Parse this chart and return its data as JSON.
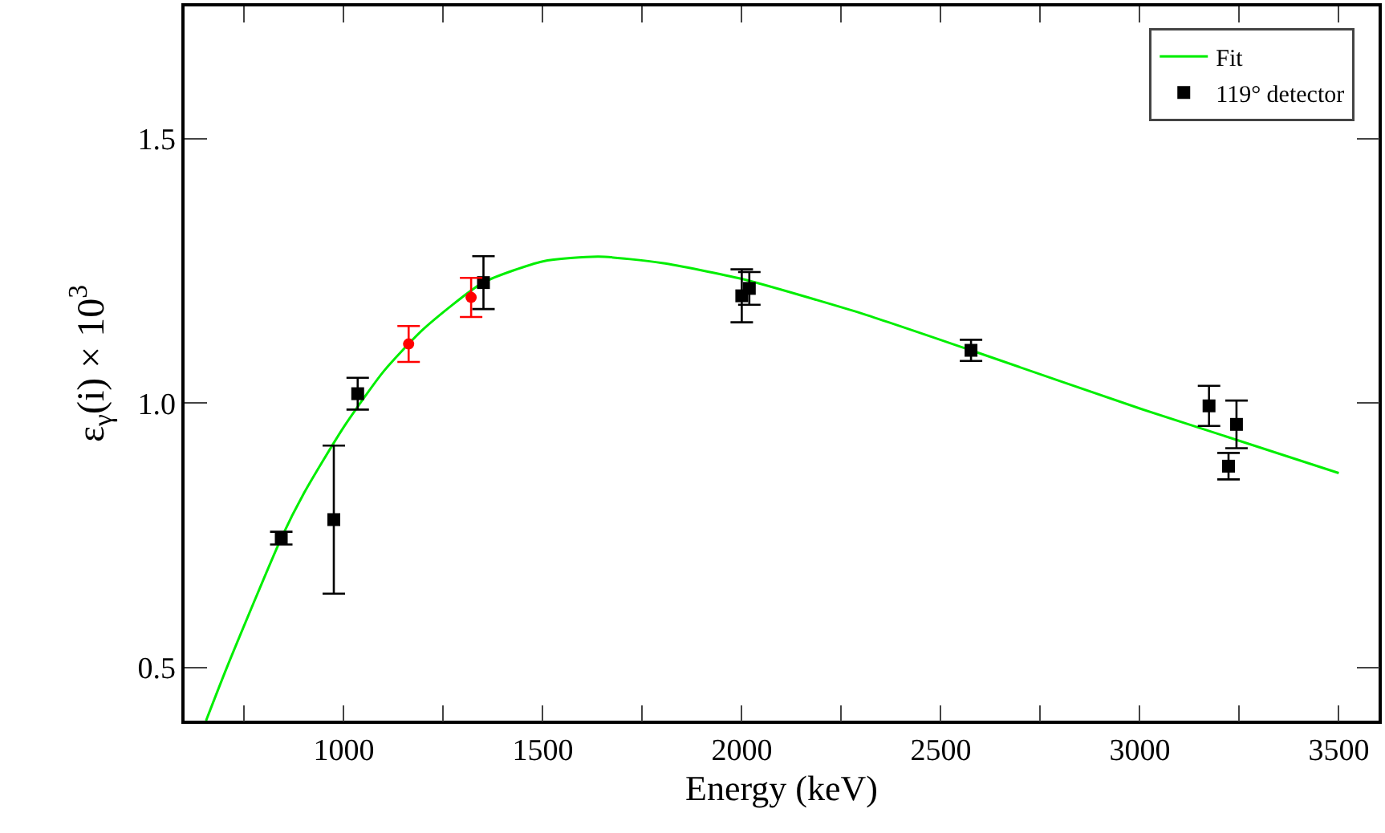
{
  "chart_data": {
    "type": "scatter",
    "xlabel": "Energy (keV)",
    "ylabel": "ε$_{γ}$(i) × 10$^{3}$",
    "xlim": [
      600,
      3600
    ],
    "ylim": [
      0.4,
      1.75
    ],
    "xticks": [
      {
        "value": 750,
        "label": null
      },
      1000,
      {
        "value": 1250,
        "label": null
      },
      1500,
      {
        "value": 1750,
        "label": null
      },
      2000,
      {
        "value": 2250,
        "label": null
      },
      2500,
      {
        "value": 2750,
        "label": null
      },
      3000,
      {
        "value": 3250,
        "label": null
      },
      3500
    ],
    "yticks": [
      0.5,
      {
        "value": 1,
        "label": "1.0"
      },
      1.5
    ],
    "grid": false,
    "legend": "top right",
    "series": [
      {
        "name": "Fit",
        "type": "line",
        "color": "#00ee00",
        "marker": "none",
        "line_style": "solid",
        "x": [
          654,
          706,
          843,
          900,
          1000,
          1100,
          1200,
          1350,
          1500,
          1640,
          1800,
          2000,
          2300,
          2576,
          3000,
          3500
        ],
        "values": [
          0.4,
          0.5,
          0.745,
          0.83,
          0.955,
          1.06,
          1.14,
          1.228,
          1.268,
          1.277,
          1.265,
          1.235,
          1.17,
          1.1,
          0.99,
          0.868
        ]
      },
      {
        "name": "119° detector",
        "color": "#000000",
        "marker": "square",
        "x": [
          843,
          975,
          1035,
          1351,
          2000,
          2019,
          2576,
          3174,
          3243,
          3223
        ],
        "values": [
          0.745,
          0.78,
          1.018,
          1.228,
          1.203,
          1.217,
          1.1,
          0.995,
          0.96,
          0.881
        ],
        "errors": [
          0.012,
          0.14,
          0.03,
          0.05,
          0.05,
          0.031,
          0.02,
          0.038,
          0.045,
          0.025
        ]
      },
      {
        "color": "#ff0000",
        "marker": "circle",
        "x": [
          1163,
          1320
        ],
        "values": [
          1.112,
          1.2
        ],
        "errors": [
          0.034,
          0.037
        ]
      }
    ]
  }
}
